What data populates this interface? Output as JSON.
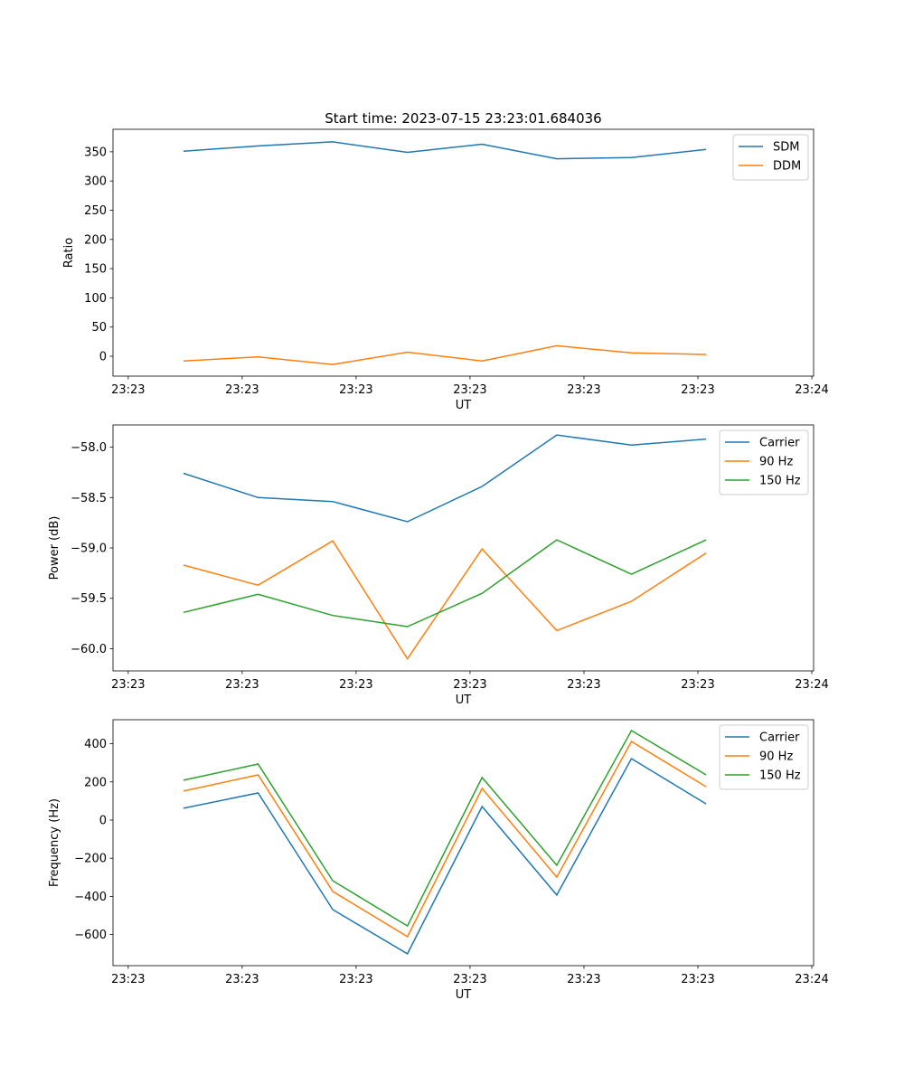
{
  "chart_data": [
    {
      "type": "line",
      "title": "Start time: 2023-07-15 23:23:01.684036",
      "xlabel": "UT",
      "ylabel": "Ratio",
      "x": [
        0,
        1,
        2,
        3,
        4,
        5,
        6,
        7
      ],
      "xlim": [
        -0.944,
        8.44
      ],
      "xticks": [
        -0.74,
        0.786,
        2.312,
        3.838,
        5.364,
        6.89,
        8.416
      ],
      "xtick_labels": [
        "23:23",
        "23:23",
        "23:23",
        "23:23",
        "23:23",
        "23:23",
        "23:24"
      ],
      "ylim": [
        -34,
        388.5
      ],
      "yticks": [
        0,
        50,
        100,
        150,
        200,
        250,
        300,
        350
      ],
      "ytick_labels": [
        "0",
        "50",
        "100",
        "150",
        "200",
        "250",
        "300",
        "350"
      ],
      "legend": "top-right",
      "series": [
        {
          "name": "SDM",
          "color": "#1f77b4",
          "values": [
            351,
            360,
            367,
            349,
            363,
            338,
            340,
            354
          ]
        },
        {
          "name": "DDM",
          "color": "#ff7f0e",
          "values": [
            -8,
            -1,
            -14,
            7,
            -8,
            18,
            6,
            3
          ]
        }
      ]
    },
    {
      "type": "line",
      "title": "",
      "xlabel": "UT",
      "ylabel": "Power (dB)",
      "x": [
        0,
        1,
        2,
        3,
        4,
        5,
        6,
        7
      ],
      "xlim": [
        -0.944,
        8.44
      ],
      "xticks": [
        -0.74,
        0.786,
        2.312,
        3.838,
        5.364,
        6.89,
        8.416
      ],
      "xtick_labels": [
        "23:23",
        "23:23",
        "23:23",
        "23:23",
        "23:23",
        "23:23",
        "23:24"
      ],
      "ylim": [
        -60.22,
        -57.78
      ],
      "yticks": [
        -60.0,
        -59.5,
        -59.0,
        -58.5,
        -58.0
      ],
      "ytick_labels": [
        "−60.0",
        "−59.5",
        "−59.0",
        "−58.5",
        "−58.0"
      ],
      "legend": "top-right",
      "series": [
        {
          "name": "Carrier",
          "color": "#1f77b4",
          "values": [
            -58.26,
            -58.5,
            -58.54,
            -58.74,
            -58.39,
            -57.88,
            -57.98,
            -57.92
          ]
        },
        {
          "name": "90 Hz",
          "color": "#ff7f0e",
          "values": [
            -59.17,
            -59.37,
            -58.93,
            -60.1,
            -59.01,
            -59.82,
            -59.53,
            -59.05
          ]
        },
        {
          "name": "150 Hz",
          "color": "#2ca02c",
          "values": [
            -59.64,
            -59.46,
            -59.67,
            -59.78,
            -59.45,
            -58.92,
            -59.26,
            -58.92
          ]
        }
      ]
    },
    {
      "type": "line",
      "title": "",
      "xlabel": "UT",
      "ylabel": "Frequency (Hz)",
      "x": [
        0,
        1,
        2,
        3,
        4,
        5,
        6,
        7
      ],
      "xlim": [
        -0.944,
        8.44
      ],
      "xticks": [
        -0.74,
        0.786,
        2.312,
        3.838,
        5.364,
        6.89,
        8.416
      ],
      "xtick_labels": [
        "23:23",
        "23:23",
        "23:23",
        "23:23",
        "23:23",
        "23:23",
        "23:24"
      ],
      "ylim": [
        -763,
        526
      ],
      "yticks": [
        -600,
        -400,
        -200,
        0,
        200,
        400
      ],
      "ytick_labels": [
        "−600",
        "−400",
        "−200",
        "0",
        "200",
        "400"
      ],
      "legend": "top-right",
      "series": [
        {
          "name": "Carrier",
          "color": "#1f77b4",
          "values": [
            62,
            142,
            -469,
            -701,
            71,
            -393,
            322,
            85
          ]
        },
        {
          "name": "90 Hz",
          "color": "#ff7f0e",
          "values": [
            152,
            237,
            -374,
            -611,
            166,
            -299,
            412,
            175
          ]
        },
        {
          "name": "150 Hz",
          "color": "#2ca02c",
          "values": [
            209,
            294,
            -318,
            -555,
            223,
            -237,
            469,
            237
          ]
        }
      ]
    }
  ]
}
